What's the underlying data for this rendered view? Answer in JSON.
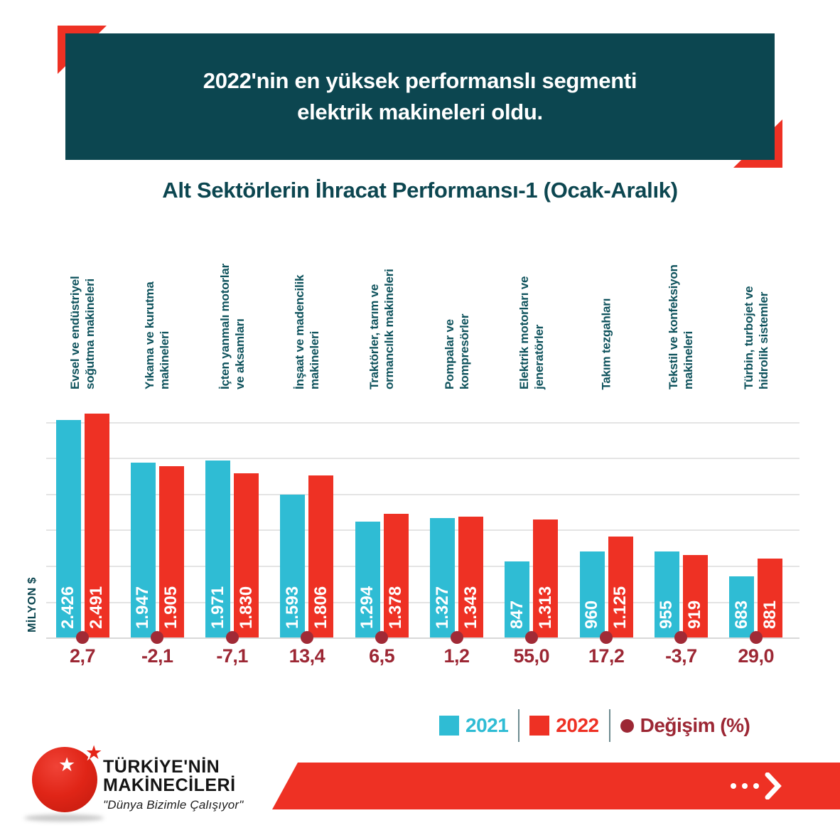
{
  "banner": {
    "line1": "2022'nin en yüksek performanslı segmenti",
    "line2": "elektrik makineleri oldu."
  },
  "chart_title": "Alt Sektörlerin İhracat Performansı-1 (Ocak-Aralık)",
  "y_axis_label": "MİLYON $",
  "colors": {
    "teal_dark": "#0c4650",
    "teal_label": "#0e525c",
    "red": "#ee3124",
    "cyan": "#2fbcd4",
    "burgundy": "#9c2734",
    "gridline": "#e4e4e4"
  },
  "chart_data": {
    "type": "bar",
    "title": "Alt Sektörlerin İhracat Performansı-1 (Ocak-Aralık)",
    "ylabel": "MİLYON $",
    "unit": "MİLYON $",
    "ylim": [
      0,
      2600
    ],
    "gridline_step": 400,
    "grid": true,
    "legend_position": "bottom",
    "categories": [
      "Evsel ve endüstriyel soğutma makineleri",
      "Yıkama ve kurutma makineleri",
      "İçten yanmalı motorlar ve aksamları",
      "İnşaat ve madencilik makineleri",
      "Traktörler, tarım ve ormancılık makineleri",
      "Pompalar ve kompresörler",
      "Elektrik motorları ve jeneratörler",
      "Takım tezgahları",
      "Tekstil ve konfeksiyon makineleri",
      "Türbin, turbojet ve hidrolik sistemler"
    ],
    "category_lines": [
      [
        "Evsel ve endüstriyel",
        "soğutma makineleri"
      ],
      [
        "Yıkama ve kurutma",
        "makineleri"
      ],
      [
        "İçten yanmalı motorlar",
        "ve aksamları"
      ],
      [
        "İnşaat ve madencilik",
        "makineleri"
      ],
      [
        "Traktörler, tarım ve",
        "ormancılık makineleri"
      ],
      [
        "Pompalar ve",
        "kompresörler"
      ],
      [
        "Elektrik motorları ve",
        "jeneratörler"
      ],
      [
        "Takım tezgahları"
      ],
      [
        "Tekstil ve konfeksiyon",
        "makineleri"
      ],
      [
        "Türbin, turbojet ve",
        "hidrolik sistemler"
      ]
    ],
    "series": [
      {
        "name": "2021",
        "color": "#2fbcd4",
        "values": [
          2426,
          1947,
          1971,
          1593,
          1294,
          1327,
          847,
          960,
          955,
          683
        ]
      },
      {
        "name": "2022",
        "color": "#ee3124",
        "values": [
          2491,
          1905,
          1830,
          1806,
          1378,
          1343,
          1313,
          1125,
          919,
          881
        ]
      }
    ],
    "value_labels": [
      [
        "2.426",
        "1.947",
        "1.971",
        "1.593",
        "1.294",
        "1.327",
        "847",
        "960",
        "955",
        "683"
      ],
      [
        "2.491",
        "1.905",
        "1.830",
        "1.806",
        "1.378",
        "1.343",
        "1.313",
        "1.125",
        "919",
        "881"
      ]
    ],
    "change_percent": [
      "2,7",
      "-2,1",
      "-7,1",
      "13,4",
      "6,5",
      "1,2",
      "55,0",
      "17,2",
      "-3,7",
      "29,0"
    ],
    "change_color": "#9c2734"
  },
  "legend": {
    "items": [
      {
        "label": "2021",
        "color": "#2fbcd4",
        "shape": "square"
      },
      {
        "label": "2022",
        "color": "#ee3124",
        "shape": "square"
      },
      {
        "label": "Değişim (%)",
        "color": "#9c2734",
        "shape": "circle"
      }
    ]
  },
  "footer": {
    "brand_line1": "TÜRKİYE'NİN",
    "brand_line2": "MAKİNECİLERİ",
    "tagline": "\"Dünya Bizimle Çalışıyor\"",
    "cta_icon": "dots-chevron-right-icon"
  }
}
